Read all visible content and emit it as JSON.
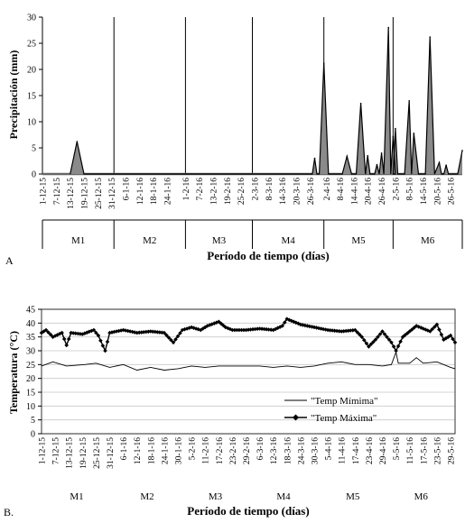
{
  "figure": {
    "panel_a_letter": "A",
    "panel_b_letter": "B."
  },
  "chart_data": [
    {
      "type": "area",
      "ylabel": "Precipitación (mm)",
      "xlabel": "Período de tiempo (días)",
      "ylim": [
        0,
        30
      ],
      "yticks": [
        "0",
        "5",
        "10",
        "15",
        "20",
        "25",
        "30"
      ],
      "grid": false,
      "x_start": "1-12-15",
      "x_end": "31-5-16",
      "xtick_labels": [
        "1-12-15",
        "7-12-15",
        "13-12-15",
        "19-12-15",
        "25-12-15",
        "31-12-15",
        "6-1-16",
        "12-1-16",
        "18-1-16",
        "24-1-16",
        "1-2-16",
        "7-2-16",
        "13-2-16",
        "19-2-16",
        "25-2-16",
        "2-3-16",
        "8-3-16",
        "14-3-16",
        "20-3-16",
        "26-3-16",
        "2-4-16",
        "8-4-16",
        "14-4-16",
        "20-4-16",
        "26-4-16",
        "2-5-16",
        "8-5-16",
        "14-5-16",
        "20-5-16",
        "26-5-16"
      ],
      "months": [
        "M1",
        "M2",
        "M3",
        "M4",
        "M5",
        "M6"
      ],
      "series": [
        {
          "color": "#000000",
          "points": [
            [
              "13-12-15",
              0
            ],
            [
              "16-12-15",
              6.2
            ],
            [
              "19-12-15",
              0
            ],
            [
              "27-3-16",
              0
            ],
            [
              "28-3-16",
              3.0
            ],
            [
              "29-3-16",
              0
            ],
            [
              "30-3-16",
              0
            ],
            [
              "1-4-16",
              21.2
            ],
            [
              "3-4-16",
              0
            ],
            [
              "9-4-16",
              0
            ],
            [
              "11-4-16",
              3.4
            ],
            [
              "13-4-16",
              0
            ],
            [
              "15-4-16",
              0
            ],
            [
              "17-4-16",
              13.5
            ],
            [
              "19-4-16",
              0
            ],
            [
              "19-4-16",
              0
            ],
            [
              "20-4-16",
              3.5
            ],
            [
              "21-4-16",
              0
            ],
            [
              "23-4-16",
              0
            ],
            [
              "24-4-16",
              1.8
            ],
            [
              "25-4-16",
              0
            ],
            [
              "25-4-16",
              0
            ],
            [
              "26-4-16",
              4.0
            ],
            [
              "27-4-16",
              0
            ],
            [
              "27-4-16",
              0
            ],
            [
              "29-4-16",
              28.0
            ],
            [
              "30-4-16",
              0
            ],
            [
              "30-4-16",
              0
            ],
            [
              "1-5-16",
              7.2
            ],
            [
              "2-5-16",
              0
            ],
            [
              "1-5-16",
              0
            ],
            [
              "2-5-16",
              8.7
            ],
            [
              "3-5-16",
              0
            ],
            [
              "6-5-16",
              0
            ],
            [
              "8-5-16",
              14.0
            ],
            [
              "9-5-16",
              0
            ],
            [
              "9-5-16",
              0
            ],
            [
              "10-5-16",
              7.8
            ],
            [
              "12-5-16",
              0
            ],
            [
              "15-5-16",
              0
            ],
            [
              "17-5-16",
              26.2
            ],
            [
              "19-5-16",
              0
            ],
            [
              "19-5-16",
              0
            ],
            [
              "21-5-16",
              2.2
            ],
            [
              "22-5-16",
              0
            ],
            [
              "23-5-16",
              0
            ],
            [
              "24-5-16",
              1.7
            ],
            [
              "25-5-16",
              0
            ],
            [
              "29-5-16",
              0
            ],
            [
              "31-5-16",
              4.5
            ]
          ]
        }
      ]
    },
    {
      "type": "line",
      "ylabel": "Temperatura (°C)",
      "xlabel": "Período de tiempo (días)",
      "ylim": [
        0,
        45
      ],
      "yticks": [
        "0",
        "5",
        "10",
        "15",
        "20",
        "25",
        "30",
        "35",
        "40",
        "45"
      ],
      "grid": true,
      "legend_position": "lower-center",
      "x_start": "1-12-15",
      "x_end": "31-5-16",
      "xtick_labels": [
        "1-12-15",
        "7-12-15",
        "13-12-15",
        "19-12-15",
        "25-12-15",
        "31-12-15",
        "6-1-16",
        "12-1-16",
        "18-1-16",
        "24-1-16",
        "30-1-16",
        "5-2-16",
        "11-2-16",
        "17-2-16",
        "23-2-16",
        "29-2-16",
        "6-3-16",
        "12-3-16",
        "18-3-16",
        "24-3-16",
        "30-3-16",
        "5-4-16",
        "11-4-16",
        "17-4-16",
        "23-4-16",
        "29-4-16",
        "5-5-16",
        "11-5-16",
        "17-5-16",
        "23-5-16",
        "29-5-16"
      ],
      "months": [
        "M1",
        "M2",
        "M3",
        "M4",
        "M5",
        "M6"
      ],
      "series": [
        {
          "name": "\"Temp Mímima\"",
          "color": "#000000",
          "marker": "none",
          "points": [
            [
              "1-12-15",
              24.5
            ],
            [
              "6-12-15",
              26.0
            ],
            [
              "12-12-15",
              24.5
            ],
            [
              "20-12-15",
              25.0
            ],
            [
              "25-12-15",
              25.5
            ],
            [
              "31-12-15",
              24.0
            ],
            [
              "6-1-16",
              25.0
            ],
            [
              "12-1-16",
              23.0
            ],
            [
              "18-1-16",
              24.0
            ],
            [
              "24-1-16",
              23.0
            ],
            [
              "30-1-16",
              23.5
            ],
            [
              "5-2-16",
              24.5
            ],
            [
              "11-2-16",
              24.0
            ],
            [
              "17-2-16",
              24.5
            ],
            [
              "23-2-16",
              24.5
            ],
            [
              "29-2-16",
              24.5
            ],
            [
              "6-3-16",
              24.5
            ],
            [
              "12-3-16",
              24.0
            ],
            [
              "18-3-16",
              24.5
            ],
            [
              "24-3-16",
              24.0
            ],
            [
              "30-3-16",
              24.5
            ],
            [
              "5-4-16",
              25.5
            ],
            [
              "11-4-16",
              26.0
            ],
            [
              "17-4-16",
              25.0
            ],
            [
              "23-4-16",
              25.0
            ],
            [
              "29-4-16",
              24.5
            ],
            [
              "3-5-16",
              25.0
            ],
            [
              "5-5-16",
              29.5
            ],
            [
              "6-5-16",
              25.5
            ],
            [
              "11-5-16",
              25.5
            ],
            [
              "14-5-16",
              27.5
            ],
            [
              "17-5-16",
              25.5
            ],
            [
              "23-5-16",
              26.0
            ],
            [
              "29-5-16",
              24.0
            ],
            [
              "31-5-16",
              23.5
            ]
          ]
        },
        {
          "name": "\"Temp Máxima\"",
          "color": "#000000",
          "marker": "diamond",
          "points": [
            [
              "1-12-15",
              36.5
            ],
            [
              "3-12-15",
              37.5
            ],
            [
              "6-12-15",
              35.0
            ],
            [
              "10-12-15",
              36.5
            ],
            [
              "12-12-15",
              32.0
            ],
            [
              "14-12-15",
              36.5
            ],
            [
              "19-12-15",
              36.0
            ],
            [
              "24-12-15",
              37.5
            ],
            [
              "26-12-15",
              35.5
            ],
            [
              "29-12-15",
              30.0
            ],
            [
              "31-12-15",
              36.5
            ],
            [
              "6-1-16",
              37.5
            ],
            [
              "12-1-16",
              36.5
            ],
            [
              "18-1-16",
              37.0
            ],
            [
              "24-1-16",
              36.5
            ],
            [
              "28-1-16",
              33.0
            ],
            [
              "1-2-16",
              37.5
            ],
            [
              "5-2-16",
              38.5
            ],
            [
              "9-2-16",
              37.5
            ],
            [
              "12-2-16",
              39.0
            ],
            [
              "17-2-16",
              40.5
            ],
            [
              "20-2-16",
              38.5
            ],
            [
              "23-2-16",
              37.5
            ],
            [
              "29-2-16",
              37.5
            ],
            [
              "6-3-16",
              38.0
            ],
            [
              "12-3-16",
              37.5
            ],
            [
              "16-3-16",
              39.0
            ],
            [
              "18-3-16",
              41.5
            ],
            [
              "24-3-16",
              39.5
            ],
            [
              "30-3-16",
              38.5
            ],
            [
              "5-4-16",
              37.5
            ],
            [
              "11-4-16",
              37.0
            ],
            [
              "17-4-16",
              37.5
            ],
            [
              "20-4-16",
              35.0
            ],
            [
              "23-4-16",
              31.5
            ],
            [
              "26-4-16",
              34.0
            ],
            [
              "29-4-16",
              37.0
            ],
            [
              "3-5-16",
              33.0
            ],
            [
              "5-5-16",
              30.0
            ],
            [
              "8-5-16",
              35.0
            ],
            [
              "11-5-16",
              37.0
            ],
            [
              "14-5-16",
              39.0
            ],
            [
              "17-5-16",
              38.0
            ],
            [
              "20-5-16",
              37.0
            ],
            [
              "23-5-16",
              39.5
            ],
            [
              "26-5-16",
              34.0
            ],
            [
              "29-5-16",
              35.5
            ],
            [
              "31-5-16",
              33.0
            ]
          ]
        }
      ]
    }
  ]
}
